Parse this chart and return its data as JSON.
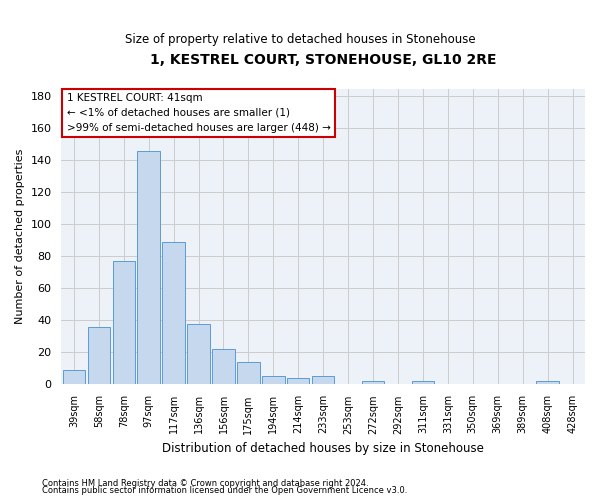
{
  "title": "1, KESTREL COURT, STONEHOUSE, GL10 2RE",
  "subtitle": "Size of property relative to detached houses in Stonehouse",
  "xlabel": "Distribution of detached houses by size in Stonehouse",
  "ylabel": "Number of detached properties",
  "bar_color": "#c5d8ed",
  "bar_edge_color": "#5b9bd5",
  "annotation_box_color": "#cc0000",
  "categories": [
    "39sqm",
    "58sqm",
    "78sqm",
    "97sqm",
    "117sqm",
    "136sqm",
    "156sqm",
    "175sqm",
    "194sqm",
    "214sqm",
    "233sqm",
    "253sqm",
    "272sqm",
    "292sqm",
    "311sqm",
    "331sqm",
    "350sqm",
    "369sqm",
    "389sqm",
    "408sqm",
    "428sqm"
  ],
  "values": [
    9,
    36,
    77,
    146,
    89,
    38,
    22,
    14,
    5,
    4,
    5,
    0,
    2,
    0,
    2,
    0,
    0,
    0,
    0,
    2,
    0
  ],
  "ylim": [
    0,
    185
  ],
  "yticks": [
    0,
    20,
    40,
    60,
    80,
    100,
    120,
    140,
    160,
    180
  ],
  "annotation_lines": [
    "1 KESTREL COURT: 41sqm",
    "← <1% of detached houses are smaller (1)",
    ">99% of semi-detached houses are larger (448) →"
  ],
  "footnote1": "Contains HM Land Registry data © Crown copyright and database right 2024.",
  "footnote2": "Contains public sector information licensed under the Open Government Licence v3.0.",
  "grid_color": "#cccccc",
  "bg_color": "#edf2f9"
}
